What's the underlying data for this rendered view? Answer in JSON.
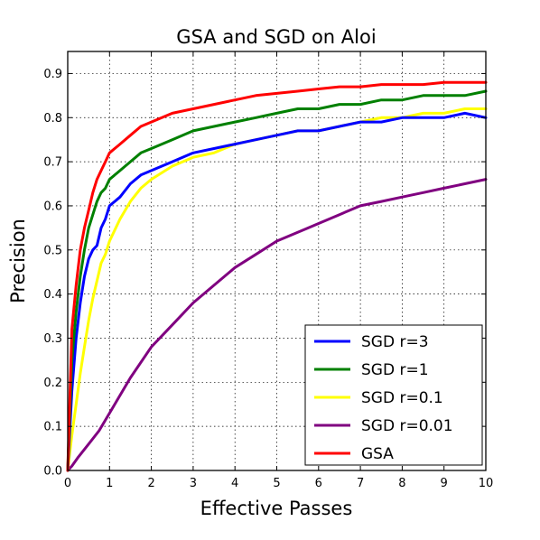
{
  "chart_data": {
    "type": "line",
    "title": "GSA and SGD on Aloi",
    "xlabel": "Effective Passes",
    "ylabel": "Precision",
    "xlim": [
      0,
      10
    ],
    "ylim": [
      0,
      0.95
    ],
    "xticks": [
      0,
      1,
      2,
      3,
      4,
      5,
      6,
      7,
      8,
      9,
      10
    ],
    "yticks": [
      0.0,
      0.1,
      0.2,
      0.3,
      0.4,
      0.5,
      0.6,
      0.7,
      0.8,
      0.9
    ],
    "ytick_labels": [
      "0.0",
      "0.1",
      "0.2",
      "0.3",
      "0.4",
      "0.5",
      "0.6",
      "0.7",
      "0.8",
      "0.9"
    ],
    "grid": true,
    "legend_position": "bottom-right",
    "series": [
      {
        "name": "SGD r=3",
        "color": "#0000ff",
        "x": [
          0,
          0.1,
          0.2,
          0.3,
          0.4,
          0.5,
          0.6,
          0.7,
          0.8,
          0.9,
          1.0,
          1.25,
          1.5,
          1.75,
          2.0,
          2.5,
          3.0,
          3.5,
          4.0,
          4.5,
          5.0,
          5.5,
          6.0,
          6.5,
          7.0,
          7.5,
          8.0,
          8.5,
          9.0,
          9.5,
          10.0
        ],
        "y": [
          0.0,
          0.18,
          0.3,
          0.38,
          0.44,
          0.48,
          0.5,
          0.51,
          0.55,
          0.57,
          0.6,
          0.62,
          0.65,
          0.67,
          0.68,
          0.7,
          0.72,
          0.73,
          0.74,
          0.75,
          0.76,
          0.77,
          0.77,
          0.78,
          0.79,
          0.79,
          0.8,
          0.8,
          0.8,
          0.81,
          0.8
        ]
      },
      {
        "name": "SGD r=1",
        "color": "#008000",
        "x": [
          0,
          0.1,
          0.2,
          0.3,
          0.4,
          0.5,
          0.6,
          0.7,
          0.8,
          0.9,
          1.0,
          1.25,
          1.5,
          1.75,
          2.0,
          2.5,
          3.0,
          3.5,
          4.0,
          4.5,
          5.0,
          5.5,
          6.0,
          6.5,
          7.0,
          7.5,
          8.0,
          8.5,
          9.0,
          9.5,
          10.0
        ],
        "y": [
          0.0,
          0.25,
          0.36,
          0.44,
          0.5,
          0.55,
          0.58,
          0.61,
          0.63,
          0.64,
          0.66,
          0.68,
          0.7,
          0.72,
          0.73,
          0.75,
          0.77,
          0.78,
          0.79,
          0.8,
          0.81,
          0.82,
          0.82,
          0.83,
          0.83,
          0.84,
          0.84,
          0.85,
          0.85,
          0.85,
          0.86
        ]
      },
      {
        "name": "SGD r=0.1",
        "color": "#ffff00",
        "x": [
          0,
          0.1,
          0.2,
          0.3,
          0.4,
          0.5,
          0.6,
          0.7,
          0.8,
          0.9,
          1.0,
          1.25,
          1.5,
          1.75,
          2.0,
          2.5,
          3.0,
          3.5,
          4.0,
          4.5,
          5.0,
          5.5,
          6.0,
          6.5,
          7.0,
          7.5,
          8.0,
          8.5,
          9.0,
          9.5,
          10.0
        ],
        "y": [
          0.0,
          0.08,
          0.15,
          0.22,
          0.28,
          0.34,
          0.39,
          0.43,
          0.47,
          0.49,
          0.52,
          0.57,
          0.61,
          0.64,
          0.66,
          0.69,
          0.71,
          0.72,
          0.74,
          0.75,
          0.76,
          0.77,
          0.77,
          0.78,
          0.79,
          0.8,
          0.8,
          0.81,
          0.81,
          0.82,
          0.82
        ]
      },
      {
        "name": "SGD r=0.01",
        "color": "#800080",
        "x": [
          0,
          0.1,
          0.25,
          0.5,
          0.75,
          1.0,
          1.5,
          2.0,
          2.5,
          3.0,
          3.5,
          4.0,
          4.5,
          5.0,
          5.5,
          6.0,
          6.5,
          7.0,
          7.5,
          8.0,
          8.5,
          9.0,
          9.5,
          10.0
        ],
        "y": [
          0.0,
          0.01,
          0.03,
          0.06,
          0.09,
          0.13,
          0.21,
          0.28,
          0.33,
          0.38,
          0.42,
          0.46,
          0.49,
          0.52,
          0.54,
          0.56,
          0.58,
          0.6,
          0.61,
          0.62,
          0.63,
          0.64,
          0.65,
          0.66
        ]
      },
      {
        "name": "GSA",
        "color": "#ff0000",
        "x": [
          0,
          0.1,
          0.2,
          0.3,
          0.4,
          0.5,
          0.6,
          0.7,
          0.8,
          0.9,
          1.0,
          1.25,
          1.5,
          1.75,
          2.0,
          2.5,
          3.0,
          3.5,
          4.0,
          4.5,
          5.0,
          5.5,
          6.0,
          6.5,
          7.0,
          7.5,
          8.0,
          8.5,
          9.0,
          9.5,
          10.0
        ],
        "y": [
          0.0,
          0.32,
          0.42,
          0.5,
          0.55,
          0.59,
          0.63,
          0.66,
          0.68,
          0.7,
          0.72,
          0.74,
          0.76,
          0.78,
          0.79,
          0.81,
          0.82,
          0.83,
          0.84,
          0.85,
          0.855,
          0.86,
          0.865,
          0.87,
          0.87,
          0.875,
          0.875,
          0.875,
          0.88,
          0.88,
          0.88
        ]
      }
    ]
  }
}
